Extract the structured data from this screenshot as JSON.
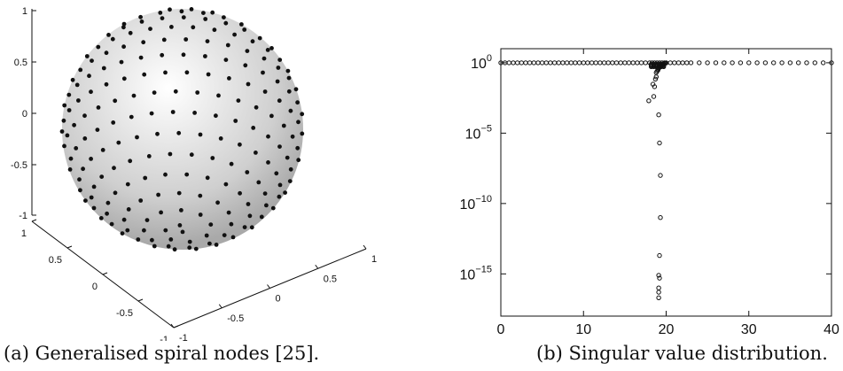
{
  "captions": {
    "a": "(a) Generalised spiral nodes [25].",
    "b": "(b) Singular value distribution."
  },
  "chart_data": [
    {
      "type": "scatter",
      "variant": "3d-sphere",
      "num_nodes": 400,
      "axis_ticks": {
        "z": [
          "1",
          "0.5",
          "0",
          "-0.5",
          "-1"
        ],
        "x": [
          "1",
          "0.5",
          "0",
          "-0.5",
          "-1"
        ],
        "y": [
          "-1",
          "-0.5",
          "0",
          "0.5",
          "1"
        ]
      },
      "colors": {
        "sphere": "#d4d4d4",
        "nodes": "#111111"
      }
    },
    {
      "type": "scatter",
      "yscale": "log",
      "xlim": [
        0,
        40
      ],
      "ylim": [
        1e-18,
        10
      ],
      "x_ticks": [
        "0",
        "10",
        "20",
        "30",
        "40"
      ],
      "y_ticks": [
        {
          "base": "10",
          "exp": "0",
          "value": 1
        },
        {
          "base": "10",
          "exp": "−5",
          "value": 1e-05
        },
        {
          "base": "10",
          "exp": "−10",
          "value": 1e-10
        },
        {
          "base": "10",
          "exp": "−15",
          "value": 1e-15
        }
      ],
      "grid": false,
      "marker": "open-circle",
      "notes": "Approximately 400 singular values plotted against a parameter; all near 1 except a cluster at x≈19 decaying to ~1e-16",
      "series": [
        {
          "x": [
            0,
            0.5,
            1,
            1.5,
            2,
            2.5,
            3,
            3.5,
            4,
            4.5,
            5,
            5.5,
            6,
            6.5,
            7,
            7.5,
            8,
            8.5,
            9,
            9.5,
            10,
            10.5,
            11,
            11.5,
            12,
            12.5,
            13,
            13.5,
            14,
            14.5,
            15,
            15.5,
            16,
            16.5,
            17,
            17.5,
            18,
            18.3,
            18.6,
            18.9,
            19.2,
            19.5,
            19.8,
            20,
            20.5,
            21,
            21.5,
            22,
            22.5,
            23,
            24,
            25,
            26,
            27,
            28,
            29,
            30,
            31,
            32,
            33,
            34,
            35,
            36,
            37,
            38,
            39,
            40
          ],
          "y": [
            1,
            1,
            1,
            1,
            1,
            1,
            1,
            1,
            1,
            1,
            1,
            1,
            1,
            1,
            1,
            1,
            1,
            1,
            1,
            1,
            1,
            1,
            1,
            1,
            1,
            1,
            1,
            1,
            1,
            1,
            1,
            1,
            1,
            1,
            1,
            1,
            1,
            1,
            1,
            1,
            1,
            1,
            1,
            1,
            1,
            1,
            1,
            1,
            1,
            1,
            1,
            1,
            1,
            1,
            1,
            1,
            1,
            1,
            1,
            1,
            1,
            1,
            1,
            1,
            1,
            1,
            1
          ]
        },
        {
          "x": [
            18.4,
            18.5,
            18.6,
            18.7,
            18.8,
            18.8,
            18.9,
            19,
            19,
            19.1,
            19.1,
            19.2,
            19.2,
            19.3,
            19.3,
            19.4,
            19.5,
            19.6,
            19.7,
            19.8,
            19.9,
            20
          ],
          "y": [
            0.03,
            0.004,
            0.02,
            0.07,
            0.1,
            0.2,
            0.25,
            0.3,
            0.35,
            0.4,
            0.45,
            0.5,
            0.55,
            0.6,
            0.65,
            0.7,
            0.75,
            0.8,
            0.85,
            0.9,
            0.95,
            0.97
          ]
        },
        {
          "x": [
            17.9,
            19.1,
            19.2,
            19.3,
            19.3,
            19.2,
            19.2,
            19.1,
            19.1,
            19.1,
            19.1
          ],
          "y": [
            0.002,
            0.0002,
            2e-06,
            1e-08,
            1e-11,
            2e-14,
            5e-16,
            8e-16,
            1e-16,
            5e-17,
            2e-17
          ]
        }
      ]
    }
  ]
}
